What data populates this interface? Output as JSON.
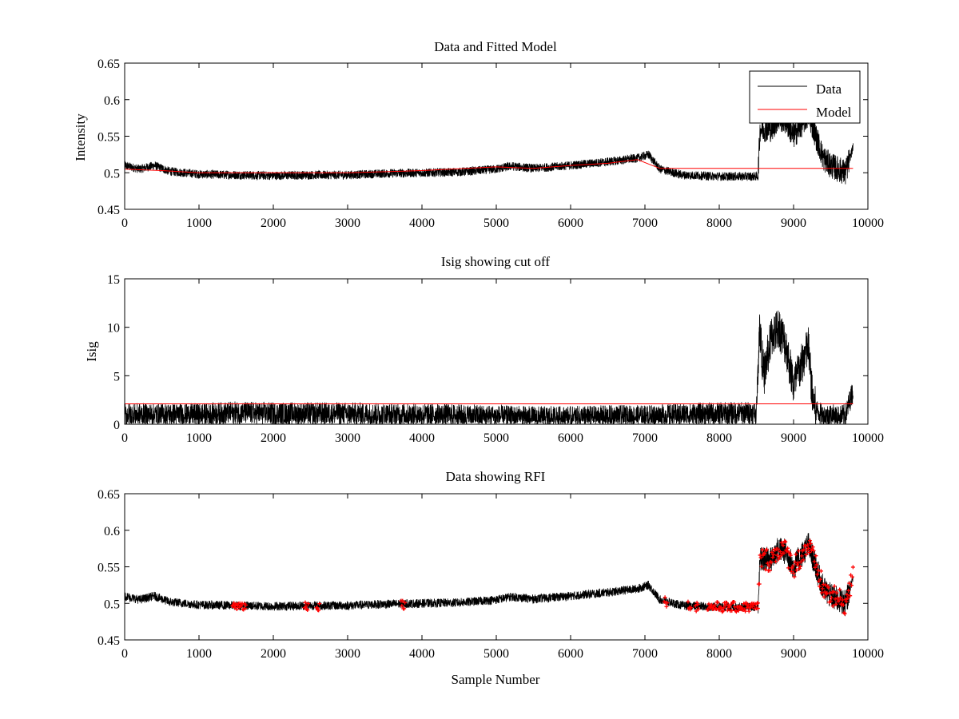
{
  "figure": {
    "background": "#ffffff",
    "colors": {
      "data": "#000000",
      "model": "#ff0000",
      "rfi": "#ff0000"
    }
  },
  "chart_data": [
    {
      "type": "line",
      "title": "Data and Fitted Model",
      "xlabel": "",
      "ylabel": "Intensity",
      "xlim": [
        0,
        10000
      ],
      "ylim": [
        0.45,
        0.65
      ],
      "xticks": [
        "0",
        "1000",
        "2000",
        "3000",
        "4000",
        "5000",
        "6000",
        "7000",
        "8000",
        "9000",
        "10000"
      ],
      "yticks": [
        "0.45",
        "0.5",
        "0.55",
        "0.6",
        "0.65"
      ],
      "grid": false,
      "legend": {
        "placement": "top-right",
        "entries": [
          "Data",
          "Model"
        ]
      },
      "series": [
        {
          "name": "Data",
          "color": "#000000",
          "x": [
            0,
            200,
            400,
            600,
            800,
            1000,
            1500,
            2000,
            2500,
            3000,
            3500,
            4000,
            4500,
            5000,
            5200,
            5500,
            6000,
            6500,
            6900,
            7050,
            7200,
            7500,
            8000,
            8520,
            8550,
            8700,
            8800,
            8900,
            9000,
            9100,
            9200,
            9300,
            9400,
            9500,
            9600,
            9700,
            9800
          ],
          "y": [
            0.51,
            0.505,
            0.51,
            0.502,
            0.5,
            0.498,
            0.497,
            0.496,
            0.497,
            0.497,
            0.499,
            0.5,
            0.501,
            0.505,
            0.509,
            0.506,
            0.51,
            0.515,
            0.52,
            0.525,
            0.505,
            0.497,
            0.495,
            0.495,
            0.56,
            0.56,
            0.575,
            0.57,
            0.55,
            0.565,
            0.58,
            0.55,
            0.52,
            0.51,
            0.505,
            0.5,
            0.535
          ],
          "noise_amplitude": 0.006,
          "spike_amplitude_8520_9800": 0.02
        },
        {
          "name": "Model",
          "color": "#ff0000",
          "x": [
            0,
            500,
            1000,
            2000,
            3000,
            4000,
            5000,
            5500,
            6000,
            6500,
            6900,
            7050,
            7200,
            8000,
            9000,
            9800
          ],
          "y": [
            0.505,
            0.503,
            0.5,
            0.5,
            0.5,
            0.503,
            0.508,
            0.506,
            0.51,
            0.513,
            0.518,
            0.512,
            0.506,
            0.506,
            0.506,
            0.506
          ]
        }
      ]
    },
    {
      "type": "line",
      "title": "Isig showing cut off",
      "xlabel": "",
      "ylabel": "Isig",
      "xlim": [
        0,
        10000
      ],
      "ylim": [
        0,
        15
      ],
      "xticks": [
        "0",
        "1000",
        "2000",
        "3000",
        "4000",
        "5000",
        "6000",
        "7000",
        "8000",
        "9000",
        "10000"
      ],
      "yticks": [
        "0",
        "5",
        "10",
        "15"
      ],
      "grid": false,
      "series": [
        {
          "color": "#000000",
          "x": [
            0,
            500,
            1000,
            1500,
            2000,
            2500,
            3000,
            3500,
            4000,
            4500,
            5000,
            5500,
            6000,
            6500,
            7000,
            7500,
            8000,
            8500,
            8540,
            8600,
            8700,
            8800,
            8900,
            9000,
            9100,
            9200,
            9250,
            9300,
            9400,
            9500,
            9600,
            9700,
            9800
          ],
          "y": [
            1.0,
            1.0,
            1.0,
            1.2,
            1.1,
            1.1,
            1.1,
            1.0,
            1.0,
            0.9,
            0.8,
            0.7,
            0.7,
            0.8,
            0.8,
            1.0,
            1.1,
            1.2,
            10.0,
            5.0,
            9.0,
            10.0,
            8.0,
            4.0,
            6.0,
            8.0,
            3.0,
            1.5,
            0.8,
            1.0,
            0.7,
            1.0,
            3.5
          ],
          "noise_amplitude": 0.9
        },
        {
          "color": "#ff0000",
          "x": [
            0,
            9800
          ],
          "y": [
            2.1,
            2.1
          ]
        }
      ]
    },
    {
      "type": "line",
      "title": "Data showing RFI",
      "xlabel": "Sample Number",
      "ylabel": "",
      "xlim": [
        0,
        10000
      ],
      "ylim": [
        0.45,
        0.65
      ],
      "xticks": [
        "0",
        "1000",
        "2000",
        "3000",
        "4000",
        "5000",
        "6000",
        "7000",
        "8000",
        "9000",
        "10000"
      ],
      "yticks": [
        "0.45",
        "0.5",
        "0.55",
        "0.6",
        "0.65"
      ],
      "grid": false,
      "series": [
        {
          "color": "#000000",
          "x": [
            0,
            200,
            400,
            600,
            800,
            1000,
            1500,
            2000,
            2500,
            3000,
            3500,
            4000,
            4500,
            5000,
            5200,
            5500,
            6000,
            6500,
            6900,
            7050,
            7200,
            7500,
            8000,
            8520,
            8550,
            8700,
            8800,
            8900,
            9000,
            9100,
            9200,
            9300,
            9400,
            9500,
            9600,
            9700,
            9800
          ],
          "y": [
            0.51,
            0.505,
            0.51,
            0.502,
            0.5,
            0.498,
            0.497,
            0.496,
            0.497,
            0.497,
            0.499,
            0.5,
            0.501,
            0.505,
            0.509,
            0.506,
            0.51,
            0.515,
            0.52,
            0.525,
            0.505,
            0.497,
            0.495,
            0.495,
            0.56,
            0.56,
            0.575,
            0.57,
            0.55,
            0.565,
            0.58,
            0.55,
            0.52,
            0.51,
            0.505,
            0.5,
            0.535
          ],
          "noise_amplitude": 0.006
        },
        {
          "color": "#ff0000",
          "marker": "+",
          "flagged_ranges": [
            [
              1450,
              1630
            ],
            [
              2420,
              2470
            ],
            [
              2580,
              2620
            ],
            [
              3720,
              3770
            ],
            [
              7260,
              7300
            ],
            [
              7580,
              7620
            ],
            [
              7680,
              7720
            ],
            [
              7840,
              8520
            ],
            [
              8520,
              9800
            ]
          ]
        }
      ]
    }
  ]
}
